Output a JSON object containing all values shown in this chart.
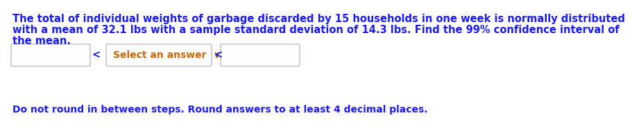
{
  "line1": "The total of individual weights of garbage discarded by 15 households in one week is normally distributed",
  "line2": "with a mean of 32.1 lbs with a sample standard deviation of 14.3 lbs. Find the 99% confidence interval of",
  "line3": "the mean.",
  "dropdown_text": "Select an answer  ∨",
  "footer": "Do not round in between steps. Round answers to at least 4 decimal places.",
  "text_color": "#1a1aff",
  "footer_color": "#1a1aff",
  "bg_color": "#ffffff",
  "font_size_main": 10.5,
  "font_size_footer": 10.0,
  "font_size_dropdown": 10.0
}
